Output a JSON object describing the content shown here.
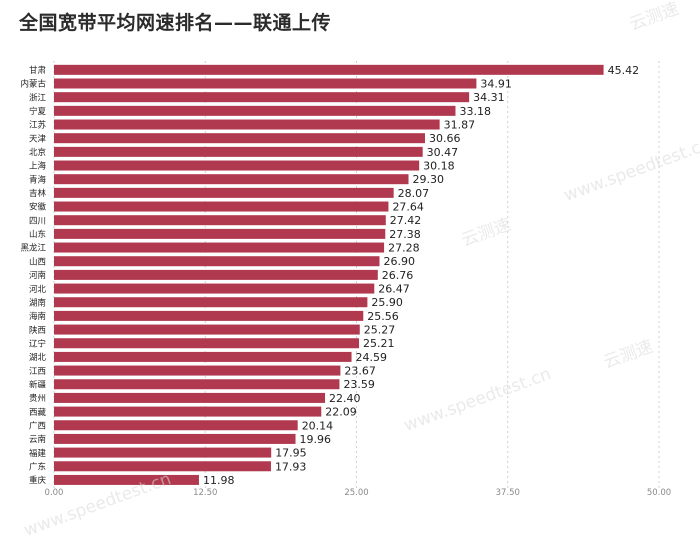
{
  "title": "全国宽带平均网速排名——联通上传",
  "colors": {
    "bar": "#b0394f",
    "grid": "#d0d0d0",
    "axis_label": "#8a8a8a",
    "text": "#222222"
  },
  "watermarks": [
    "云测速",
    "www.speedtest.cn"
  ],
  "chart_data": {
    "type": "bar",
    "orientation": "horizontal",
    "title": "全国宽带平均网速排名——联通上传",
    "xlabel": "",
    "ylabel": "",
    "xlim": [
      0,
      50
    ],
    "xticks": [
      "0.00",
      "12.50",
      "25.00",
      "37.50",
      "50.00"
    ],
    "grid": true,
    "categories": [
      "甘肃",
      "内蒙古",
      "浙江",
      "宁夏",
      "江苏",
      "天津",
      "北京",
      "上海",
      "青海",
      "吉林",
      "安徽",
      "四川",
      "山东",
      "黑龙江",
      "山西",
      "河南",
      "河北",
      "湖南",
      "海南",
      "陕西",
      "辽宁",
      "湖北",
      "江西",
      "新疆",
      "贵州",
      "西藏",
      "广西",
      "云南",
      "福建",
      "广东",
      "重庆"
    ],
    "values": [
      45.42,
      34.91,
      34.31,
      33.18,
      31.87,
      30.66,
      30.47,
      30.18,
      29.3,
      28.07,
      27.64,
      27.42,
      27.38,
      27.28,
      26.9,
      26.76,
      26.47,
      25.9,
      25.56,
      25.27,
      25.21,
      24.59,
      23.67,
      23.59,
      22.4,
      22.09,
      20.14,
      19.96,
      17.95,
      17.93,
      11.98
    ],
    "value_labels": [
      "45.42",
      "34.91",
      "34.31",
      "33.18",
      "31.87",
      "30.66",
      "30.47",
      "30.18",
      "29.30",
      "28.07",
      "27.64",
      "27.42",
      "27.38",
      "27.28",
      "26.90",
      "26.76",
      "26.47",
      "25.90",
      "25.56",
      "25.27",
      "25.21",
      "24.59",
      "23.67",
      "23.59",
      "22.40",
      "22.09",
      "20.14",
      "19.96",
      "17.95",
      "17.93",
      "11.98"
    ]
  }
}
